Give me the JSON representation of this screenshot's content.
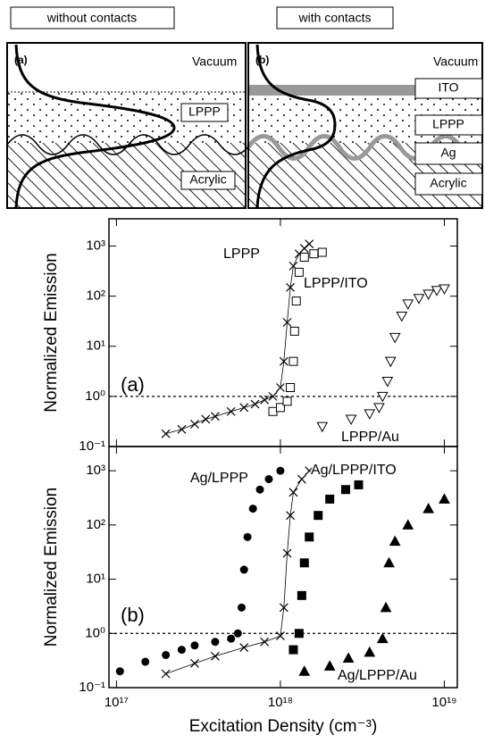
{
  "diagrams": [
    {
      "header": "without contacts",
      "panel": "(a)",
      "layers": [
        "Vacuum",
        "LPPP",
        "Acrylic"
      ]
    },
    {
      "header": "with contacts",
      "panel": "(b)",
      "layers": [
        "Vacuum",
        "ITO",
        "LPPP",
        "Ag",
        "Acrylic"
      ]
    }
  ],
  "chart_data": [
    {
      "type": "scatter",
      "xscale": "log",
      "yscale": "log",
      "ylabel": "Normalized Emission",
      "annotation": "(a)",
      "reference_line": 1,
      "xlim": [
        9e+16,
        1.2e+19
      ],
      "ylim": [
        0.1,
        3500
      ],
      "xticks": [
        1e+17,
        1e+18,
        1e+19
      ],
      "yticks": [
        {
          "value": 0.1,
          "label": "10⁻¹"
        },
        {
          "value": 1,
          "label": "10⁰"
        },
        {
          "value": 10,
          "label": "10¹"
        },
        {
          "value": 100,
          "label": "10²"
        },
        {
          "value": 1000,
          "label": "10³"
        }
      ],
      "series": [
        {
          "name": "LPPP",
          "marker": "x",
          "line": true,
          "color": "#000",
          "x": [
            2e+17,
            2.5e+17,
            3e+17,
            3.5e+17,
            4e+17,
            5e+17,
            6e+17,
            7e+17,
            8e+17,
            9e+17,
            1e+18,
            1.05e+18,
            1.1e+18,
            1.15e+18,
            1.2e+18,
            1.3e+18,
            1.4e+18,
            1.5e+18
          ],
          "values": [
            0.18,
            0.22,
            0.28,
            0.35,
            0.4,
            0.5,
            0.6,
            0.7,
            0.85,
            1.0,
            1.5,
            5,
            30,
            150,
            400,
            700,
            900,
            1100
          ]
        },
        {
          "name": "LPPP/ITO",
          "marker": "square-open",
          "line": false,
          "color": "#000",
          "x": [
            9e+17,
            1e+18,
            1.1e+18,
            1.15e+18,
            1.2e+18,
            1.22e+18,
            1.25e+18,
            1.3e+18,
            1.4e+18,
            1.6e+18,
            1.8e+18
          ],
          "values": [
            0.5,
            0.6,
            0.8,
            1.5,
            5,
            20,
            80,
            300,
            600,
            700,
            750
          ]
        },
        {
          "name": "LPPP/Au",
          "marker": "triangle-open",
          "line": false,
          "color": "#000",
          "x": [
            1.8e+18,
            2.7e+18,
            3.5e+18,
            4e+18,
            4.2e+18,
            4.5e+18,
            4.7e+18,
            5e+18,
            5.5e+18,
            6e+18,
            7e+18,
            8e+18,
            9e+18,
            1e+19
          ],
          "values": [
            0.25,
            0.35,
            0.45,
            0.6,
            1.0,
            2,
            5,
            15,
            40,
            70,
            90,
            110,
            130,
            140
          ]
        }
      ]
    },
    {
      "type": "scatter",
      "xscale": "log",
      "yscale": "log",
      "ylabel": "Normalized Emission",
      "xlabel": "Excitation Density (cm⁻³)",
      "annotation": "(b)",
      "reference_line": 1,
      "xlim": [
        9e+16,
        1.2e+19
      ],
      "ylim": [
        0.1,
        2800
      ],
      "xticks": [
        {
          "value": 1e+17,
          "label": "10¹⁷"
        },
        {
          "value": 1e+18,
          "label": "10¹⁸"
        },
        {
          "value": 1e+19,
          "label": "10¹⁹"
        }
      ],
      "yticks": [
        {
          "value": 0.1,
          "label": "10⁻¹"
        },
        {
          "value": 1,
          "label": "10⁰"
        },
        {
          "value": 10,
          "label": "10¹"
        },
        {
          "value": 100,
          "label": "10²"
        },
        {
          "value": 1000,
          "label": "10³"
        }
      ],
      "series": [
        {
          "name": "Ag/LPPP",
          "marker": "circle",
          "line": false,
          "color": "#000",
          "x": [
            1.05e+17,
            1.5e+17,
            2e+17,
            2.5e+17,
            3e+17,
            4e+17,
            5e+17,
            5.5e+17,
            5.8e+17,
            6e+17,
            6.3e+17,
            6.8e+17,
            7.5e+17,
            8.5e+17,
            1e+18
          ],
          "values": [
            0.2,
            0.3,
            0.4,
            0.5,
            0.6,
            0.7,
            0.8,
            1.0,
            3,
            15,
            60,
            200,
            450,
            700,
            1000
          ]
        },
        {
          "marker": "x",
          "line": true,
          "color": "#000",
          "x": [
            2e+17,
            3e+17,
            4e+17,
            6e+17,
            8e+17,
            1e+18,
            1.05e+18,
            1.1e+18,
            1.15e+18,
            1.2e+18,
            1.35e+18,
            1.5e+18
          ],
          "values": [
            0.18,
            0.28,
            0.38,
            0.55,
            0.7,
            0.9,
            3,
            30,
            150,
            400,
            700,
            1000
          ]
        },
        {
          "name": "Ag/LPPP/ITO",
          "marker": "square",
          "line": false,
          "color": "#000",
          "x": [
            1.2e+18,
            1.3e+18,
            1.35e+18,
            1.4e+18,
            1.5e+18,
            1.7e+18,
            2e+18,
            2.5e+18,
            3e+18
          ],
          "values": [
            0.5,
            1,
            5,
            20,
            60,
            150,
            300,
            450,
            550
          ]
        },
        {
          "name": "Ag/LPPP/Au",
          "marker": "triangle",
          "line": false,
          "color": "#000",
          "x": [
            1.4e+18,
            2e+18,
            2.6e+18,
            3.5e+18,
            4.2e+18,
            4.4e+18,
            4.6e+18,
            5e+18,
            6e+18,
            8e+18,
            1e+19
          ],
          "values": [
            0.2,
            0.25,
            0.35,
            0.45,
            0.8,
            3,
            20,
            50,
            100,
            200,
            300
          ]
        }
      ]
    }
  ]
}
